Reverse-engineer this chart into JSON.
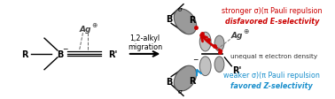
{
  "bg_color": "#ffffff",
  "fig_width": 3.78,
  "fig_height": 1.13,
  "dpi": 100,
  "red_line1": "stronger σ)(π Pauli repulsion",
  "red_line2": "disfavored E-selectivity",
  "red_color": "#cc0000",
  "blue_line1": "weaker σ)(π Pauli repulsion",
  "blue_line2": "favored Z-selectivity",
  "blue_color": "#1a8fcc",
  "mid_text": "unequal π electron density",
  "mid_color": "#333333",
  "arrow_label": "1,2-alkyl\nmigration",
  "fontsize_main": 5.8,
  "fontsize_label": 7.0,
  "fontsize_small": 5.5,
  "fontsize_em": 6.5
}
